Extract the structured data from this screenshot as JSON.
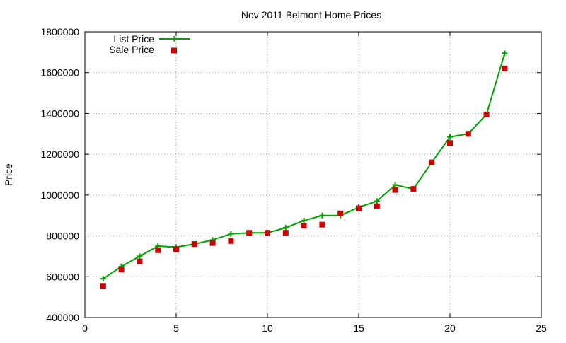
{
  "chart_data": {
    "type": "line",
    "title": "Nov 2011 Belmont Home Prices",
    "xlabel": "",
    "ylabel": "Price",
    "xlim": [
      0,
      25
    ],
    "ylim": [
      400000,
      1800000
    ],
    "xticks": [
      0,
      5,
      10,
      15,
      20,
      25
    ],
    "yticks": [
      400000,
      600000,
      800000,
      1000000,
      1200000,
      1400000,
      1600000,
      1800000
    ],
    "grid": true,
    "legend_position": "top-left",
    "x": [
      1,
      2,
      3,
      4,
      5,
      6,
      7,
      8,
      9,
      10,
      11,
      12,
      13,
      14,
      15,
      16,
      17,
      18,
      19,
      20,
      21,
      22,
      23
    ],
    "series": [
      {
        "name": "List Price",
        "style": "lines+points",
        "marker": "plus",
        "color": "#00a000",
        "values": [
          590000,
          650000,
          700000,
          750000,
          745000,
          760000,
          780000,
          810000,
          815000,
          815000,
          840000,
          875000,
          900000,
          900000,
          940000,
          970000,
          1050000,
          1030000,
          1160000,
          1285000,
          1300000,
          1395000,
          1695000
        ]
      },
      {
        "name": "Sale Price",
        "style": "points",
        "marker": "square",
        "color": "#cc0000",
        "values": [
          555000,
          635000,
          675000,
          730000,
          735000,
          760000,
          765000,
          775000,
          815000,
          815000,
          815000,
          850000,
          855000,
          910000,
          935000,
          945000,
          1025000,
          1030000,
          1160000,
          1255000,
          1300000,
          1395000,
          1620000
        ]
      }
    ]
  }
}
